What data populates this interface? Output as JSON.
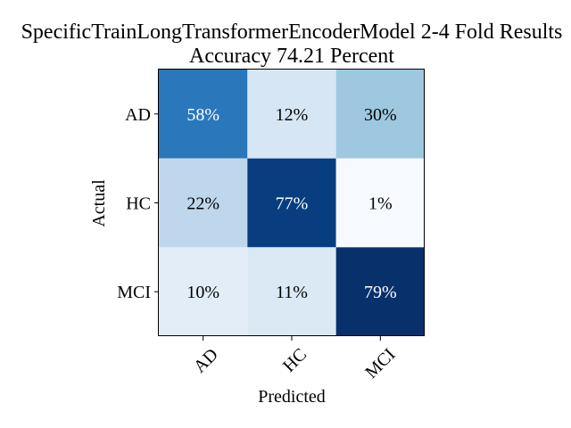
{
  "chart_data": {
    "type": "heatmap",
    "title_line1": "SpecificTrainLongTransformerEncoderModel 2-4 Fold Results",
    "title_line2": "Accuracy 74.21 Percent",
    "xlabel": "Predicted",
    "ylabel": "Actual",
    "x_categories": [
      "AD",
      "HC",
      "MCI"
    ],
    "y_categories": [
      "AD",
      "HC",
      "MCI"
    ],
    "values": [
      [
        58,
        12,
        30
      ],
      [
        22,
        77,
        1
      ],
      [
        10,
        11,
        79
      ]
    ],
    "value_format": "percent",
    "colormap": "Blues",
    "cell_colors": [
      [
        "#2a78bb",
        "#d7e6f4",
        "#9dc8e0"
      ],
      [
        "#bfd7ec",
        "#083e80",
        "#f6faff"
      ],
      [
        "#e2edf7",
        "#dbe9f5",
        "#08316c"
      ]
    ],
    "text_colors": [
      [
        "#ffffff",
        "#000000",
        "#000000"
      ],
      [
        "#000000",
        "#ffffff",
        "#000000"
      ],
      [
        "#000000",
        "#000000",
        "#ffffff"
      ]
    ]
  }
}
